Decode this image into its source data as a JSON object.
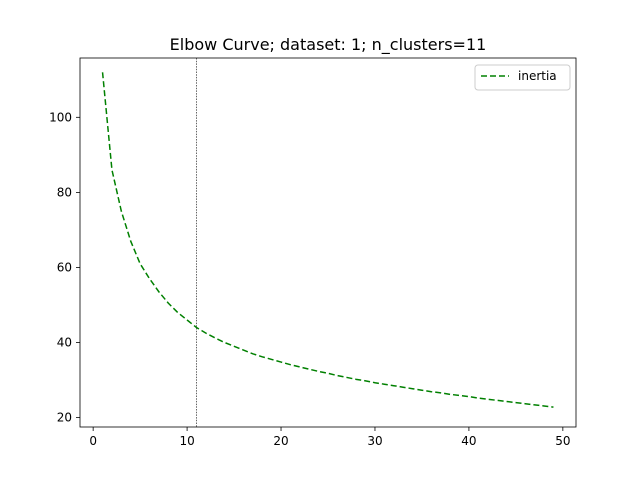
{
  "chart_data": {
    "type": "line",
    "title": "Elbow Curve; dataset: 1; n_clusters=11",
    "xlabel": "",
    "ylabel": "",
    "xlim": [
      -1.4,
      51.4
    ],
    "ylim": [
      17.5,
      115.8
    ],
    "x_ticks": [
      0,
      10,
      20,
      30,
      40,
      50
    ],
    "y_ticks": [
      20,
      40,
      60,
      80,
      100
    ],
    "vline_x": 11,
    "legend_position": "upper right",
    "grid": false,
    "series": [
      {
        "name": "inertia",
        "color": "#008000",
        "linestyle": "dashed",
        "x": [
          1,
          2,
          3,
          4,
          5,
          6,
          7,
          8,
          9,
          10,
          11,
          12,
          13,
          14,
          15,
          16,
          17,
          18,
          19,
          20,
          21,
          22,
          23,
          24,
          25,
          26,
          27,
          28,
          29,
          30,
          31,
          32,
          33,
          34,
          35,
          36,
          37,
          38,
          39,
          40,
          41,
          42,
          43,
          44,
          45,
          46,
          47,
          48,
          49
        ],
        "y": [
          112,
          86,
          75,
          67,
          61,
          57,
          53.5,
          50.5,
          48,
          46,
          44,
          42.5,
          41.2,
          40,
          39,
          38,
          37,
          36.2,
          35.5,
          34.8,
          34.1,
          33.5,
          32.9,
          32.3,
          31.8,
          31.2,
          30.7,
          30.2,
          29.8,
          29.3,
          28.9,
          28.5,
          28.1,
          27.7,
          27.3,
          26.9,
          26.6,
          26.2,
          25.9,
          25.6,
          25.2,
          24.9,
          24.6,
          24.3,
          24,
          23.7,
          23.4,
          23.1,
          22.8
        ]
      }
    ]
  }
}
